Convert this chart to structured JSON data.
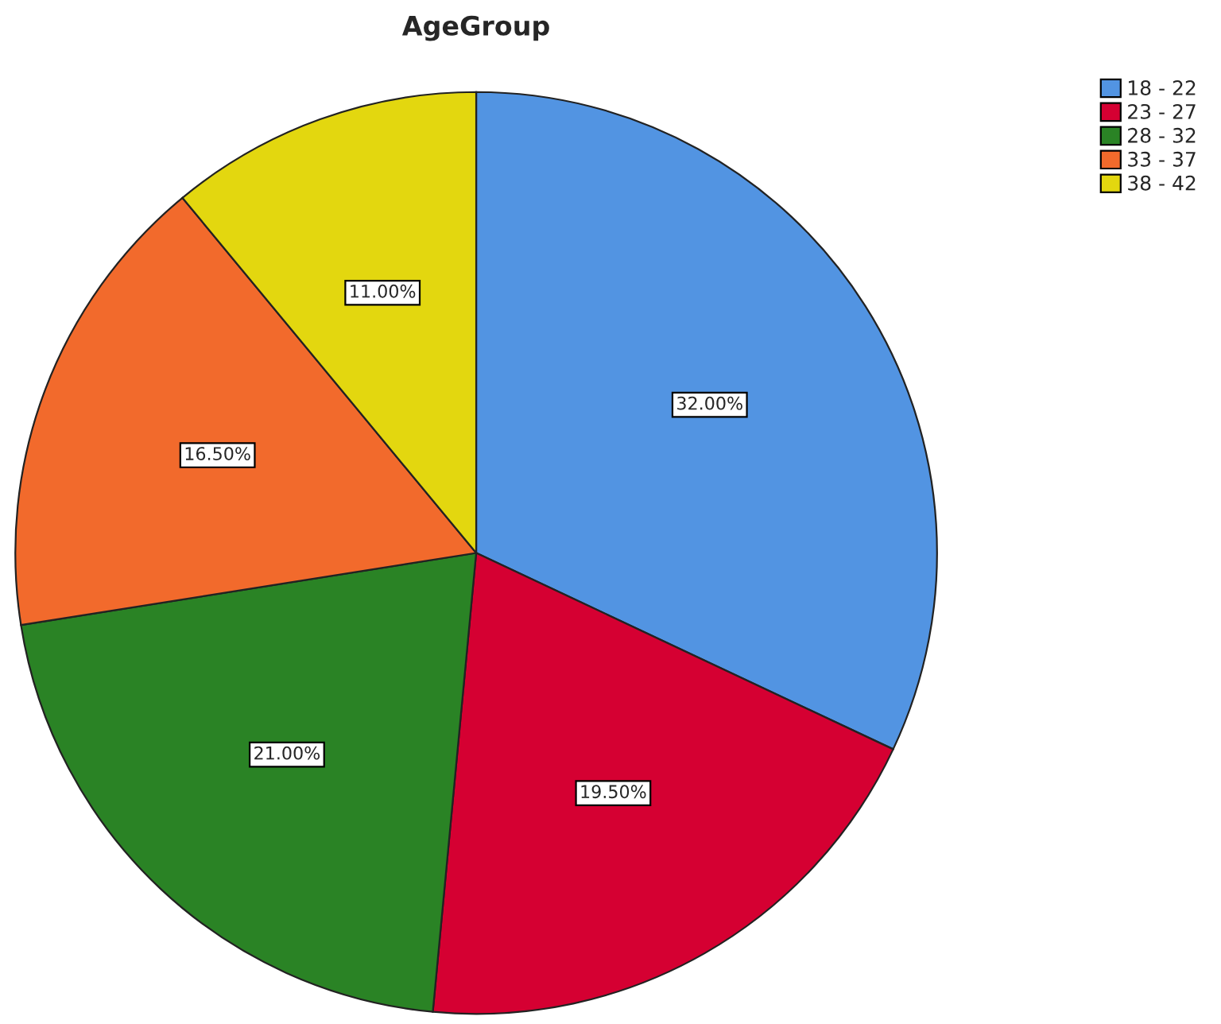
{
  "chart_data": {
    "type": "pie",
    "title": "AgeGroup",
    "categories": [
      "18 - 22",
      "23 - 27",
      "28 - 32",
      "33 - 37",
      "38 - 42"
    ],
    "values": [
      32,
      19.5,
      21,
      16.5,
      11
    ],
    "colors": [
      "#5294e2",
      "#d50032",
      "#2a8325",
      "#f26a2c",
      "#e3d70f"
    ],
    "value_labels": [
      "32.00%",
      "19.50%",
      "21.00%",
      "16.50%",
      "11.00%"
    ],
    "legend": "top right"
  }
}
